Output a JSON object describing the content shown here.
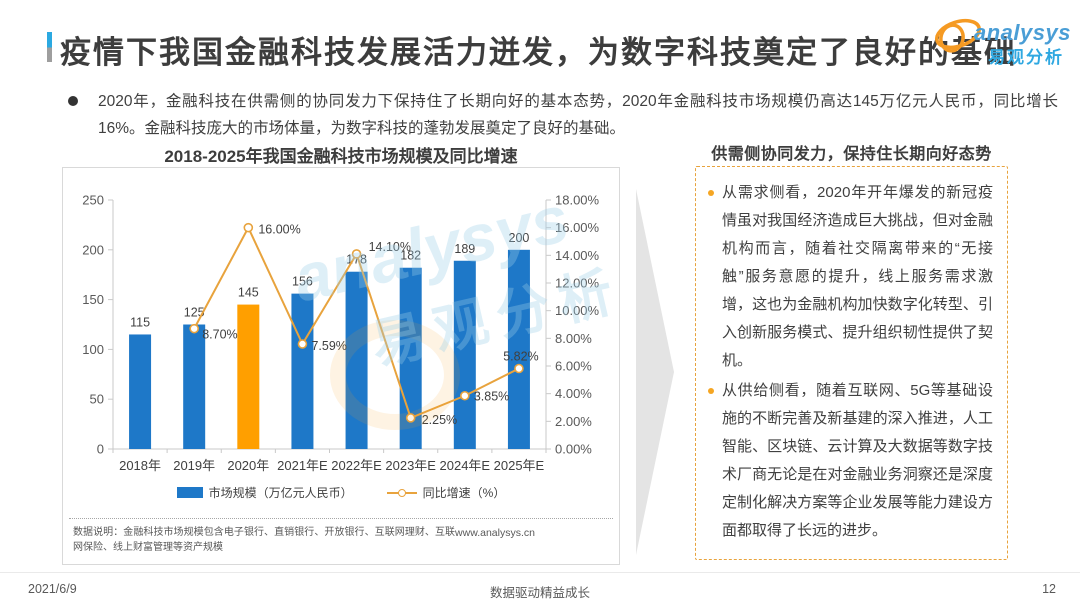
{
  "page": {
    "title": "疫情下我国金融科技发展活力迸发，为数字科技奠定了良好的基础",
    "footer": {
      "date": "2021/6/9",
      "slogan": "数据驱动精益成长",
      "page_number": "12"
    }
  },
  "logo": {
    "latin": "analysys",
    "cn": "易观分析"
  },
  "intro": {
    "text": "2020年，金融科技在供需侧的协同发力下保持住了长期向好的基本态势，2020年金融科技市场规模仍高达145万亿元人民币，同比增长16%。金融科技庞大的市场体量，为数字科技的蓬勃发展奠定了良好的基础。"
  },
  "chart_card": {
    "title": "2018-2025年我国金融科技市场规模及同比增速",
    "footnote": "数据说明：金融科技市场规模包含电子银行、直销银行、开放银行、互联网理财、互联网保险、线上财富管理等资产规模",
    "source_url": "www.analysys.cn"
  },
  "chart_data": {
    "type": "combo",
    "title": "2018-2025年我国金融科技市场规模及同比增速",
    "categories": [
      "2018年",
      "2019年",
      "2020年",
      "2021年E",
      "2022年E",
      "2023年E",
      "2024年E",
      "2025年E"
    ],
    "series": [
      {
        "name": "市场规模（万亿元人民币）",
        "type": "bar",
        "values": [
          115,
          125,
          145,
          156,
          178,
          182,
          189,
          200
        ]
      },
      {
        "name": "同比增速（%）",
        "type": "line",
        "values": [
          null,
          8.7,
          16.0,
          7.59,
          14.1,
          2.25,
          3.85,
          5.82
        ],
        "labels": [
          null,
          "8.70%",
          "16.00%",
          "7.59%",
          "14.10%",
          "2.25%",
          "3.85%",
          "5.82%"
        ],
        "label_offsets": [
          null,
          {
            "dx": 8,
            "dy": 10,
            "anchor": "start"
          },
          {
            "dx": 10,
            "dy": 6,
            "anchor": "start"
          },
          {
            "dx": 9,
            "dy": 6,
            "anchor": "start"
          },
          {
            "dx": 12,
            "dy": -3,
            "anchor": "start"
          },
          {
            "dx": 11,
            "dy": 6,
            "anchor": "start"
          },
          {
            "dx": 9,
            "dy": 5,
            "anchor": "start"
          },
          {
            "dx": 2,
            "dy": -8,
            "anchor": "middle"
          }
        ]
      }
    ],
    "left_axis": {
      "min": 0,
      "max": 250,
      "step": 50,
      "ticks": [
        "0",
        "50",
        "100",
        "150",
        "200",
        "250"
      ]
    },
    "right_axis": {
      "min": 0,
      "max": 18,
      "step": 2,
      "ticks": [
        "0.00%",
        "2.00%",
        "4.00%",
        "6.00%",
        "8.00%",
        "10.00%",
        "12.00%",
        "14.00%",
        "16.00%",
        "18.00%"
      ]
    },
    "bar_colors": {
      "default": "#1E78C8",
      "highlight": "#FF9F00",
      "highlight_index": 2
    },
    "line_color": "#E8A33D",
    "legend_position": "bottom",
    "grid": false,
    "legend": [
      {
        "label": "市场规模（万亿元人民币）",
        "swatch": "bar"
      },
      {
        "label": "同比增速（%）",
        "swatch": "line"
      }
    ]
  },
  "right_panel": {
    "title": "供需侧协同发力，保持住长期向好态势",
    "bullets": [
      "从需求侧看，2020年开年爆发的新冠疫情虽对我国经济造成巨大挑战，但对金融机构而言，随着社交隔离带来的“无接触”服务意愿的提升，线上服务需求激增，这也为金融机构加快数字化转型、引入创新服务模式、提升组织韧性提供了契机。",
      "从供给侧看，随着互联网、5G等基础设施的不断完善及新基建的深入推进，人工智能、区块链、云计算及大数据等数字技术厂商无论是在对金融业务洞察还是深度定制化解决方案等企业发展等能力建设方面都取得了长远的进步。"
    ]
  },
  "watermark": {
    "latin": "analysys",
    "cn": "易观分析"
  }
}
